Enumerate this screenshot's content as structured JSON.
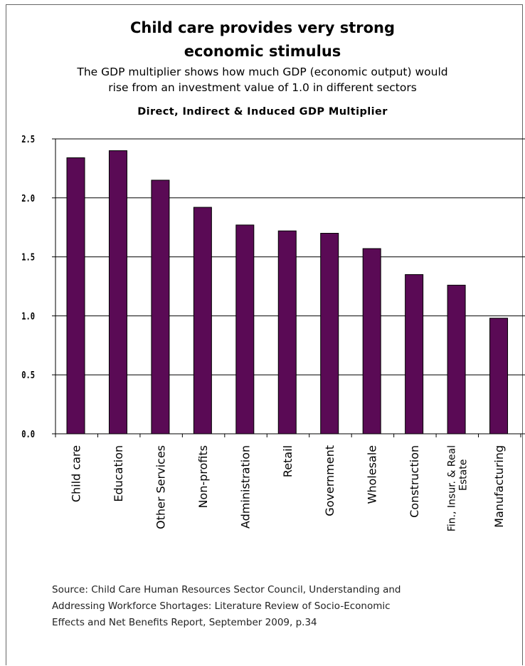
{
  "header": {
    "title_line1": "Child care provides very strong",
    "title_line2": "economic stimulus",
    "subtitle_line1": "The GDP multiplier shows how much GDP (economic output) would",
    "subtitle_line2": "rise from an investment value of 1.0 in different sectors"
  },
  "chart_data": {
    "type": "bar",
    "title": "Direct, Indirect & Induced GDP Multiplier",
    "categories": [
      "Child care",
      "Education",
      "Other Services",
      "Non-profits",
      "Administration",
      "Retail",
      "Government",
      "Wholesale",
      "Construction",
      "Fin., Insur. & Real Estate",
      "Manufacturing"
    ],
    "category_lines": [
      [
        "Child care"
      ],
      [
        "Education"
      ],
      [
        "Other Services"
      ],
      [
        "Non-profits"
      ],
      [
        "Administration"
      ],
      [
        "Retail"
      ],
      [
        "Government"
      ],
      [
        "Wholesale"
      ],
      [
        "Construction"
      ],
      [
        "Fin., Insur. & Real",
        "Estate"
      ],
      [
        "Manufacturing"
      ]
    ],
    "values": [
      2.34,
      2.4,
      2.15,
      1.92,
      1.77,
      1.72,
      1.7,
      1.57,
      1.35,
      1.26,
      0.98
    ],
    "ylim": [
      0,
      2.5
    ],
    "yticks": [
      "0.0",
      "0.5",
      "1.0",
      "1.5",
      "2.0",
      "2.5"
    ],
    "xlabel": "",
    "ylabel": "",
    "grid": true,
    "bar_color": "#5a0a55"
  },
  "source": {
    "line1": "Source: Child Care Human Resources Sector Council, Understanding and",
    "line2": "Addressing Workforce Shortages: Literature Review of Socio-Economic",
    "line3": "Effects and Net Benefits Report, September 2009, p.34"
  }
}
